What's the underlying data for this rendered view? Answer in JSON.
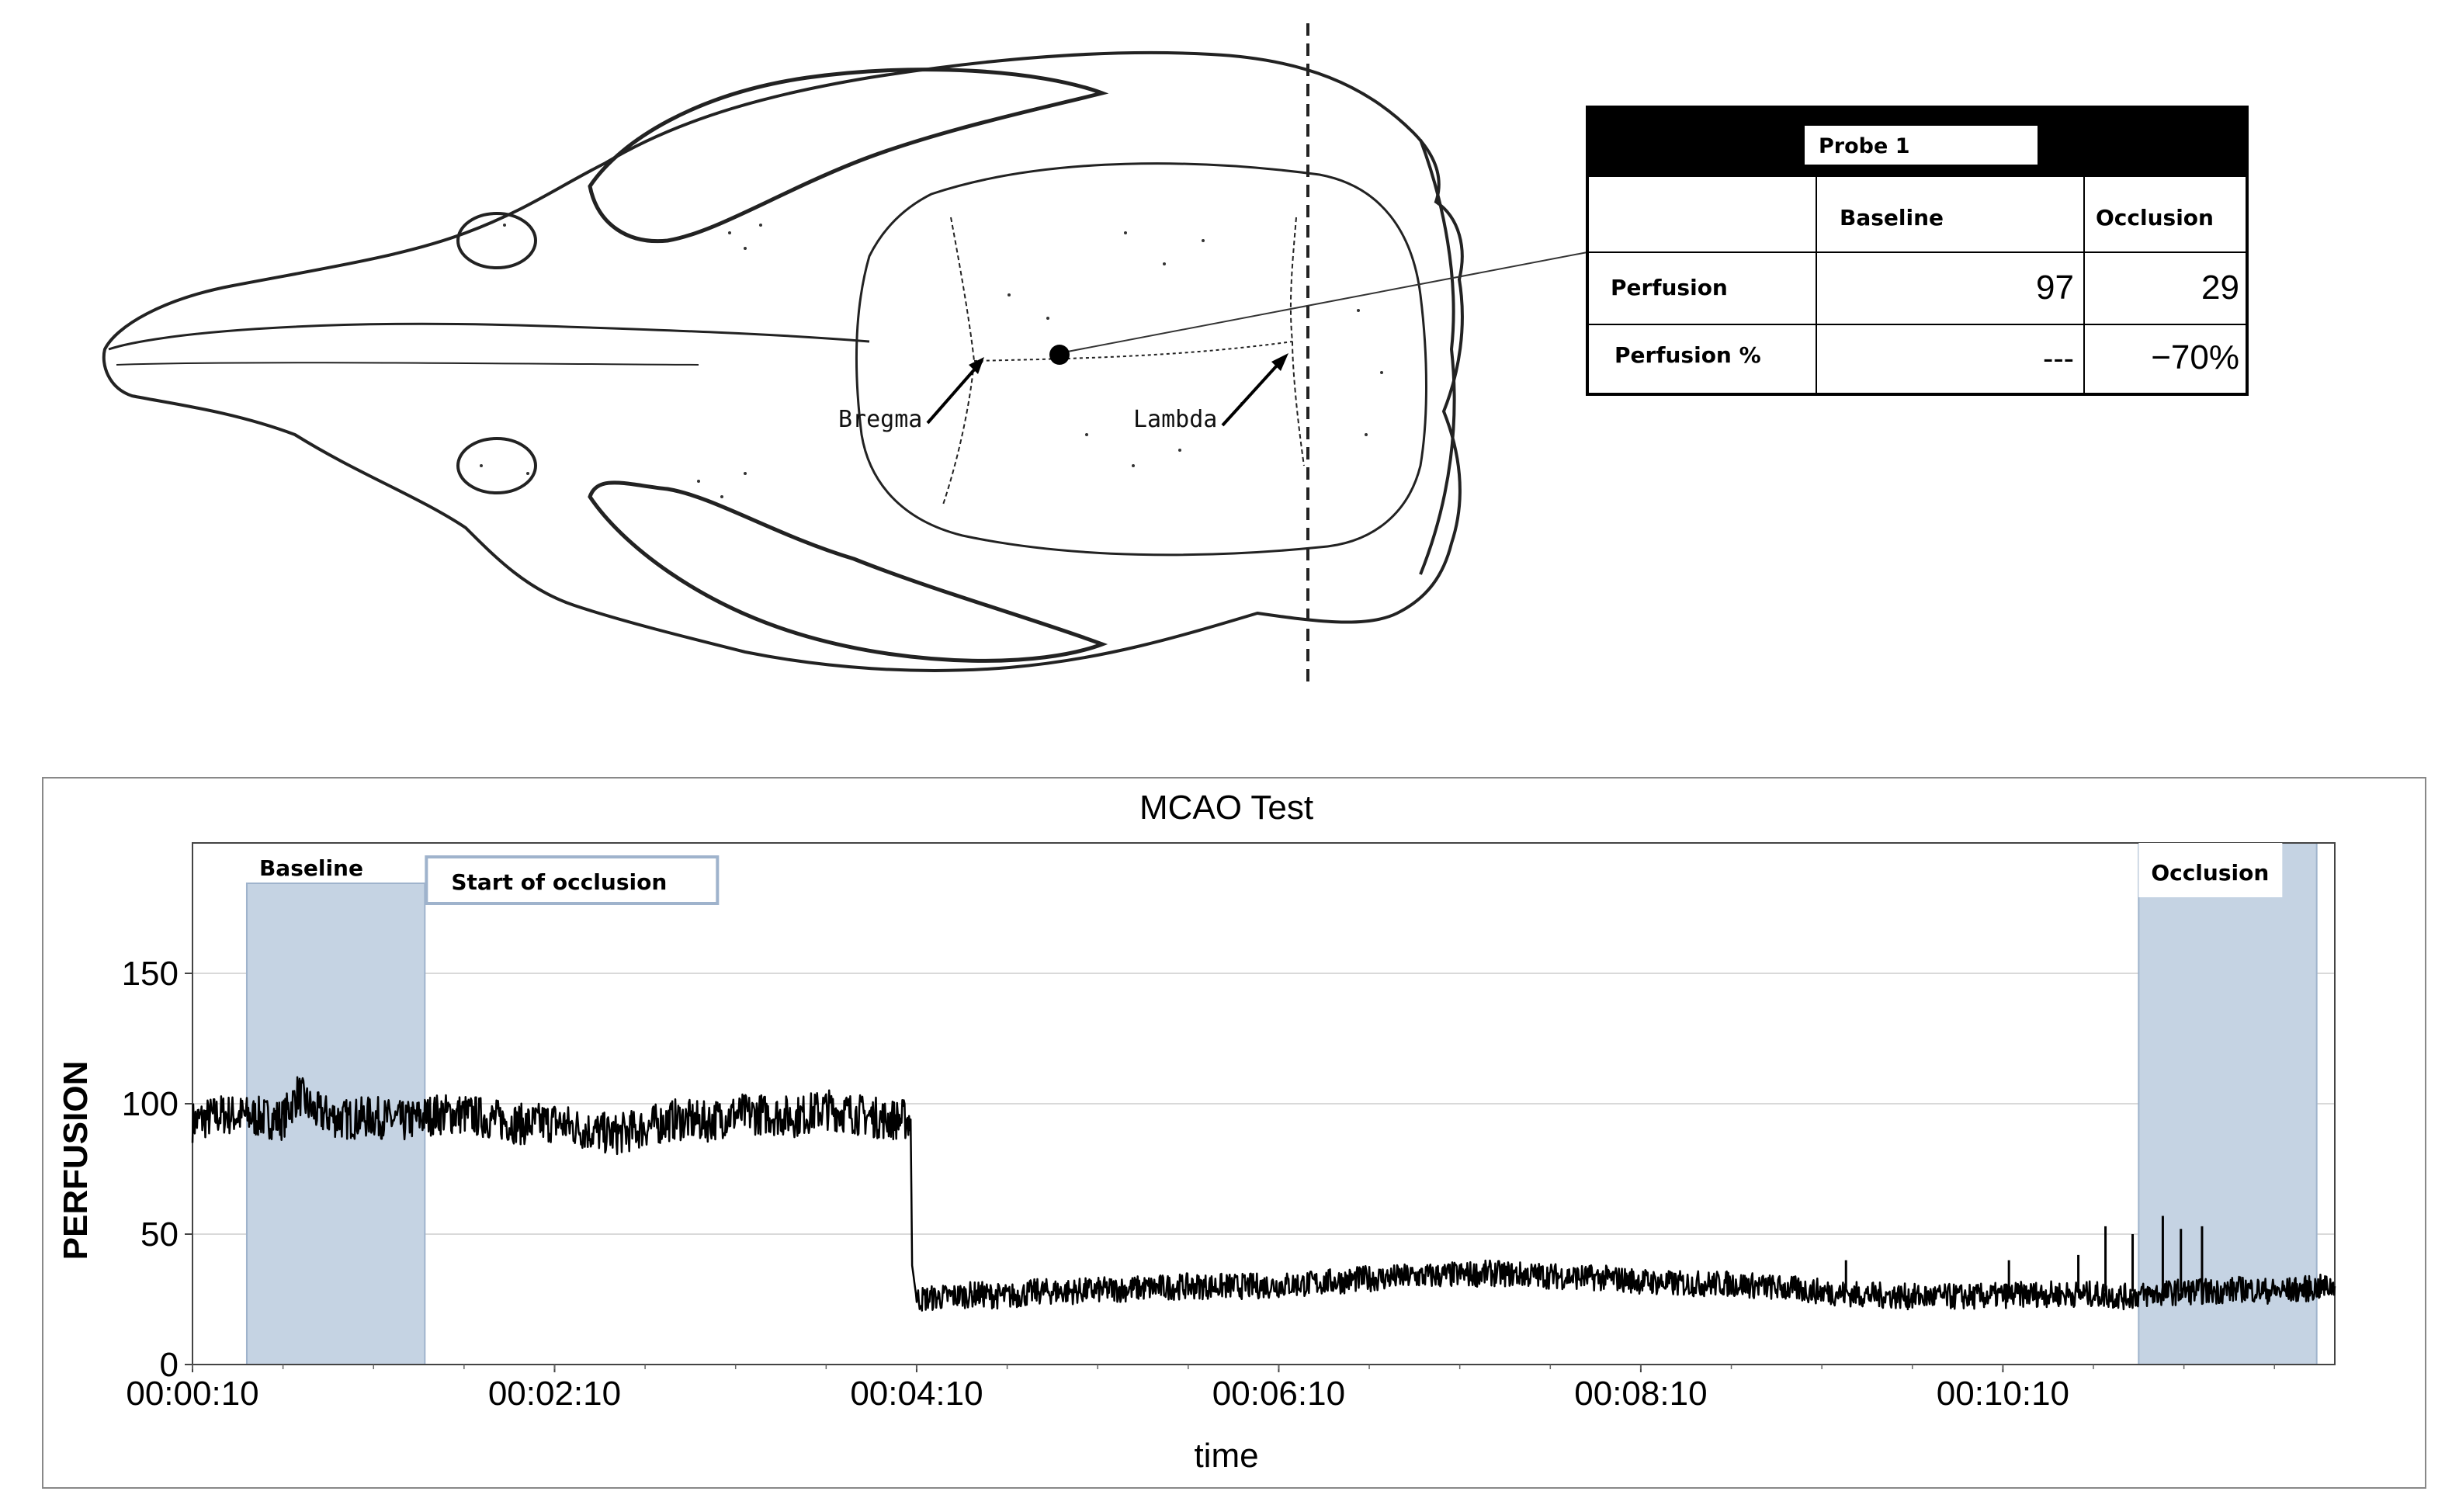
{
  "skull": {
    "bregma_label": "Bregma",
    "lambda_label": "Lambda"
  },
  "probe_table": {
    "title": "Probe 1",
    "columns": [
      "",
      "Baseline",
      "Occlusion"
    ],
    "rows": [
      {
        "label": "Perfusion",
        "baseline": "97",
        "occlusion": "29"
      },
      {
        "label": "Perfusion %",
        "baseline": "---",
        "occlusion": "−70%"
      }
    ]
  },
  "chart_data": {
    "type": "line",
    "title": "MCAO Test",
    "xlabel": "time",
    "ylabel": "PERFUSION",
    "x_unit": "seconds",
    "xlim": [
      10,
      720
    ],
    "ylim": [
      0,
      200
    ],
    "x_ticks": [
      {
        "value": 10,
        "label": "00:00:10"
      },
      {
        "value": 130,
        "label": "00:02:10"
      },
      {
        "value": 250,
        "label": "00:04:10"
      },
      {
        "value": 370,
        "label": "00:06:10"
      },
      {
        "value": 490,
        "label": "00:08:10"
      },
      {
        "value": 610,
        "label": "00:10:10"
      }
    ],
    "y_ticks": [
      0,
      50,
      100,
      150
    ],
    "grid": "horizontal",
    "series": [
      {
        "color": "#000000",
        "x": [
          10,
          20,
          30,
          40,
          45,
          50,
          60,
          70,
          80,
          90,
          100,
          110,
          120,
          130,
          140,
          150,
          160,
          170,
          180,
          190,
          200,
          210,
          220,
          230,
          240,
          248,
          248.5,
          250,
          260,
          270,
          280,
          290,
          300,
          320,
          340,
          360,
          380,
          400,
          420,
          440,
          460,
          480,
          500,
          520,
          540,
          560,
          580,
          600,
          620,
          640,
          650,
          660,
          670,
          680,
          690,
          700,
          710,
          720
        ],
        "y": [
          93,
          96,
          95,
          94,
          104,
          97,
          94,
          95,
          93,
          96,
          96,
          94,
          92,
          93,
          90,
          88,
          91,
          94,
          93,
          96,
          96,
          95,
          98,
          96,
          94,
          94,
          38,
          25,
          26,
          27,
          26,
          28,
          28,
          29,
          30,
          30,
          31,
          33,
          34,
          35,
          34,
          33,
          31,
          31,
          29,
          27,
          26,
          26,
          27,
          27,
          26,
          27,
          28,
          28,
          29,
          28,
          29,
          30
        ]
      }
    ],
    "shaded_regions": [
      {
        "x_start": 28,
        "x_end": 87,
        "label": "Baseline"
      },
      {
        "x_start": 655,
        "x_end": 714,
        "label": "Occlusion"
      }
    ],
    "annotations": [
      {
        "text": "Start of occlusion",
        "x": 87
      }
    ],
    "spikes": [
      {
        "x": 644,
        "y": 53
      },
      {
        "x": 653,
        "y": 50
      },
      {
        "x": 663,
        "y": 57
      },
      {
        "x": 669,
        "y": 52
      },
      {
        "x": 676,
        "y": 53
      },
      {
        "x": 635,
        "y": 42
      },
      {
        "x": 612,
        "y": 40
      },
      {
        "x": 558,
        "y": 40
      }
    ]
  },
  "colors": {
    "shade": "#c5d3e3",
    "line": "#000000",
    "grid": "#d9d9d9",
    "frame": "#888888"
  }
}
